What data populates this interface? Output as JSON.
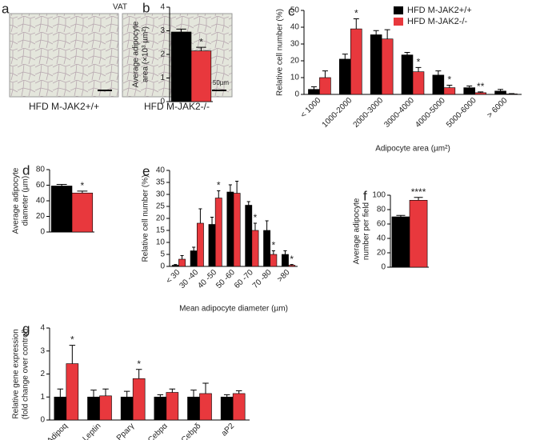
{
  "figure": {
    "panel_a": {
      "label": "a",
      "title": "VAT",
      "left_caption": "HFD M-JAK2+/+",
      "right_caption": "HFD M-JAK2-/-",
      "scale_bar": "50µm"
    }
  },
  "chart_data": [
    {
      "type": "bar",
      "label": "b",
      "ylabel": [
        "Average adipocyte",
        "area (×10³ µm²)"
      ],
      "ylim": [
        0,
        4
      ],
      "yticks": [
        0,
        1,
        2,
        3,
        4
      ],
      "series": [
        {
          "color": "#000000",
          "values": [
            2.95
          ],
          "errors": [
            0.12
          ],
          "annotations": [
            null
          ]
        },
        {
          "color": "#e8383d",
          "values": [
            2.15
          ],
          "errors": [
            0.15
          ],
          "annotations": [
            "*"
          ]
        }
      ]
    },
    {
      "type": "bar",
      "label": "c",
      "ylabel": [
        "Relative cell number (%)"
      ],
      "xlabel": "Adipocyte area (µm²)",
      "ylim": [
        0,
        50
      ],
      "yticks": [
        0,
        10,
        20,
        30,
        40,
        50
      ],
      "legend": "upper right",
      "categories": [
        "< 1000",
        "1000-2000",
        "2000-3000",
        "3000-4000",
        "4000-5000",
        "5000-6000",
        "> 6000"
      ],
      "series": [
        {
          "name": "HFD M-JAK2+/+",
          "color": "#000000",
          "values": [
            3,
            21,
            35.5,
            23.5,
            11.5,
            4,
            2
          ],
          "errors": [
            1.5,
            3,
            2.5,
            1.5,
            2.5,
            1,
            1
          ],
          "annotations": [
            null,
            null,
            null,
            null,
            null,
            null,
            null
          ]
        },
        {
          "name": "HFD M-JAK2-/-",
          "color": "#e8383d",
          "values": [
            10,
            39,
            33,
            13.5,
            4,
            1,
            0.3
          ],
          "errors": [
            4,
            6,
            5.5,
            2.5,
            1.5,
            0.5,
            0.2
          ],
          "annotations": [
            null,
            "*",
            null,
            "*",
            "*",
            "**",
            null
          ]
        }
      ]
    },
    {
      "type": "bar",
      "label": "d",
      "ylabel": [
        "Average adipocyte",
        "diameter (µm)"
      ],
      "ylim": [
        0,
        80
      ],
      "yticks": [
        0,
        20,
        40,
        60,
        80
      ],
      "series": [
        {
          "color": "#000000",
          "values": [
            59
          ],
          "errors": [
            2
          ],
          "annotations": [
            null
          ]
        },
        {
          "color": "#e8383d",
          "values": [
            50
          ],
          "errors": [
            2.5
          ],
          "annotations": [
            "*"
          ]
        }
      ]
    },
    {
      "type": "bar",
      "label": "e",
      "ylabel": [
        "Relative cell number (%)"
      ],
      "xlabel": "Mean adipocyte diameter (µm)",
      "ylim": [
        0,
        40
      ],
      "yticks": [
        0,
        5,
        10,
        15,
        20,
        25,
        30,
        35,
        40
      ],
      "categories": [
        "< 30",
        "30 -40",
        "40 -50",
        "50 -60",
        "60 -70",
        "70 -80",
        ">80"
      ],
      "series": [
        {
          "color": "#000000",
          "values": [
            0.5,
            6.5,
            17.5,
            31,
            25.5,
            15,
            5
          ],
          "errors": [
            0.3,
            1.5,
            3,
            3,
            1.5,
            4,
            1.5
          ],
          "annotations": [
            null,
            null,
            null,
            null,
            null,
            null,
            null
          ]
        },
        {
          "color": "#e8383d",
          "values": [
            3,
            18,
            28.5,
            30.5,
            15,
            5,
            0.5
          ],
          "errors": [
            1.5,
            6,
            3,
            5,
            3,
            1.5,
            0.3
          ],
          "annotations": [
            null,
            null,
            "*",
            null,
            "*",
            "*",
            "*"
          ]
        }
      ]
    },
    {
      "type": "bar",
      "label": "f",
      "ylabel": [
        "Average adipocyte",
        "number per field"
      ],
      "ylim": [
        0,
        100
      ],
      "yticks": [
        0,
        20,
        40,
        60,
        80,
        100
      ],
      "series": [
        {
          "color": "#000000",
          "values": [
            70
          ],
          "errors": [
            2
          ],
          "annotations": [
            null
          ]
        },
        {
          "color": "#e8383d",
          "values": [
            93
          ],
          "errors": [
            4
          ],
          "annotations": [
            "****"
          ]
        }
      ]
    },
    {
      "type": "bar",
      "label": "g",
      "ylabel": [
        "Relative gene expression",
        "(fold change over control)"
      ],
      "ylim": [
        0,
        4
      ],
      "yticks": [
        0,
        1,
        2,
        3,
        4
      ],
      "categories": [
        "Adipoq",
        "Leptin",
        "Pparγ",
        "Cebpα",
        "Cebpδ",
        "aP2"
      ],
      "series": [
        {
          "color": "#000000",
          "values": [
            1,
            1,
            1,
            1,
            1,
            1
          ],
          "errors": [
            0.35,
            0.3,
            0.25,
            0.1,
            0.3,
            0.1
          ],
          "annotations": [
            null,
            null,
            null,
            null,
            null,
            null
          ]
        },
        {
          "color": "#e8383d",
          "values": [
            2.45,
            1.05,
            1.8,
            1.2,
            1.15,
            1.15
          ],
          "errors": [
            0.8,
            0.3,
            0.4,
            0.15,
            0.45,
            0.12
          ],
          "annotations": [
            "*",
            null,
            "*",
            null,
            null,
            null
          ]
        }
      ]
    }
  ]
}
